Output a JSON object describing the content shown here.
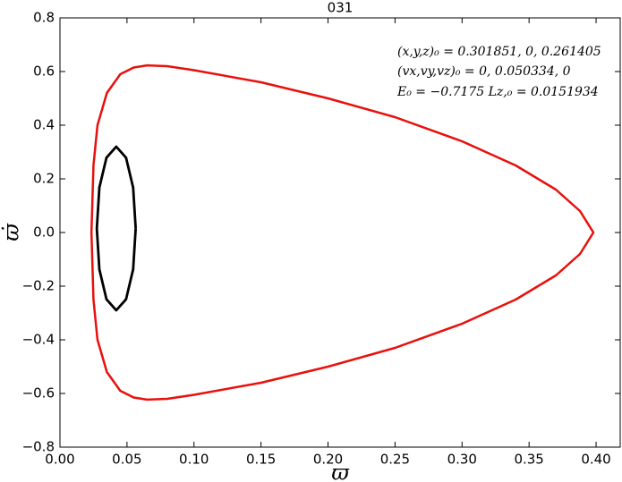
{
  "chart_data": {
    "type": "line",
    "title": "031",
    "x_label": "ϖ",
    "y_label": "ϖ̇",
    "annotations": [
      "(x,y,z)₀ = 0.301851, 0, 0.261405",
      "(vx,vy,vz)₀ = 0, 0.050334, 0",
      "E₀ = −0.7175   Lz,₀ = 0.0151934"
    ],
    "xlim": [
      0,
      0.418
    ],
    "ylim": [
      -0.8,
      0.8
    ],
    "xticks": [
      {
        "value": 0,
        "label": "0.00"
      },
      {
        "value": 0.05,
        "label": "0.05"
      },
      {
        "value": 0.1,
        "label": "0.10"
      },
      {
        "value": 0.15,
        "label": "0.15"
      },
      {
        "value": 0.2,
        "label": "0.20"
      },
      {
        "value": 0.25,
        "label": "0.25"
      },
      {
        "value": 0.3,
        "label": "0.30"
      },
      {
        "value": 0.35,
        "label": "0.35"
      },
      {
        "value": 0.4,
        "label": "0.40"
      }
    ],
    "yticks": [
      {
        "value": -0.8,
        "label": "−0.8"
      },
      {
        "value": -0.6,
        "label": "−0.6"
      },
      {
        "value": -0.4,
        "label": "−0.4"
      },
      {
        "value": -0.2,
        "label": "−0.2"
      },
      {
        "value": 0,
        "label": "0.0"
      },
      0.2,
      0.4,
      0.6,
      0.8
    ],
    "grid": false,
    "series": [
      {
        "color": "#e8100c",
        "x": [
          0.0235,
          0.025,
          0.028,
          0.035,
          0.045,
          0.055,
          0.065,
          0.08,
          0.1,
          0.15,
          0.2,
          0.25,
          0.3,
          0.34,
          0.37,
          0.388,
          0.398,
          0.388,
          0.37,
          0.34,
          0.3,
          0.25,
          0.2,
          0.15,
          0.1,
          0.08,
          0.065,
          0.055,
          0.045,
          0.035,
          0.028,
          0.025,
          0.0235
        ],
        "values": [
          0,
          0.25,
          0.4,
          0.52,
          0.59,
          0.615,
          0.623,
          0.62,
          0.605,
          0.56,
          0.5,
          0.43,
          0.34,
          0.25,
          0.16,
          0.08,
          0,
          -0.08,
          -0.16,
          -0.25,
          -0.34,
          -0.43,
          -0.5,
          -0.56,
          -0.605,
          -0.62,
          -0.623,
          -0.615,
          -0.59,
          -0.52,
          -0.4,
          -0.25,
          0
        ]
      },
      {
        "color": "#000000",
        "x": [
          0.0565,
          0.0546,
          0.0493,
          0.042,
          0.0347,
          0.0294,
          0.0275,
          0.0294,
          0.0347,
          0.042,
          0.0493,
          0.0546,
          0.0565
        ],
        "values": [
          0.015,
          0.1675,
          0.279,
          0.32,
          0.279,
          0.1675,
          0.015,
          -0.1375,
          -0.249,
          -0.29,
          -0.249,
          -0.1375,
          0.015
        ]
      }
    ]
  }
}
